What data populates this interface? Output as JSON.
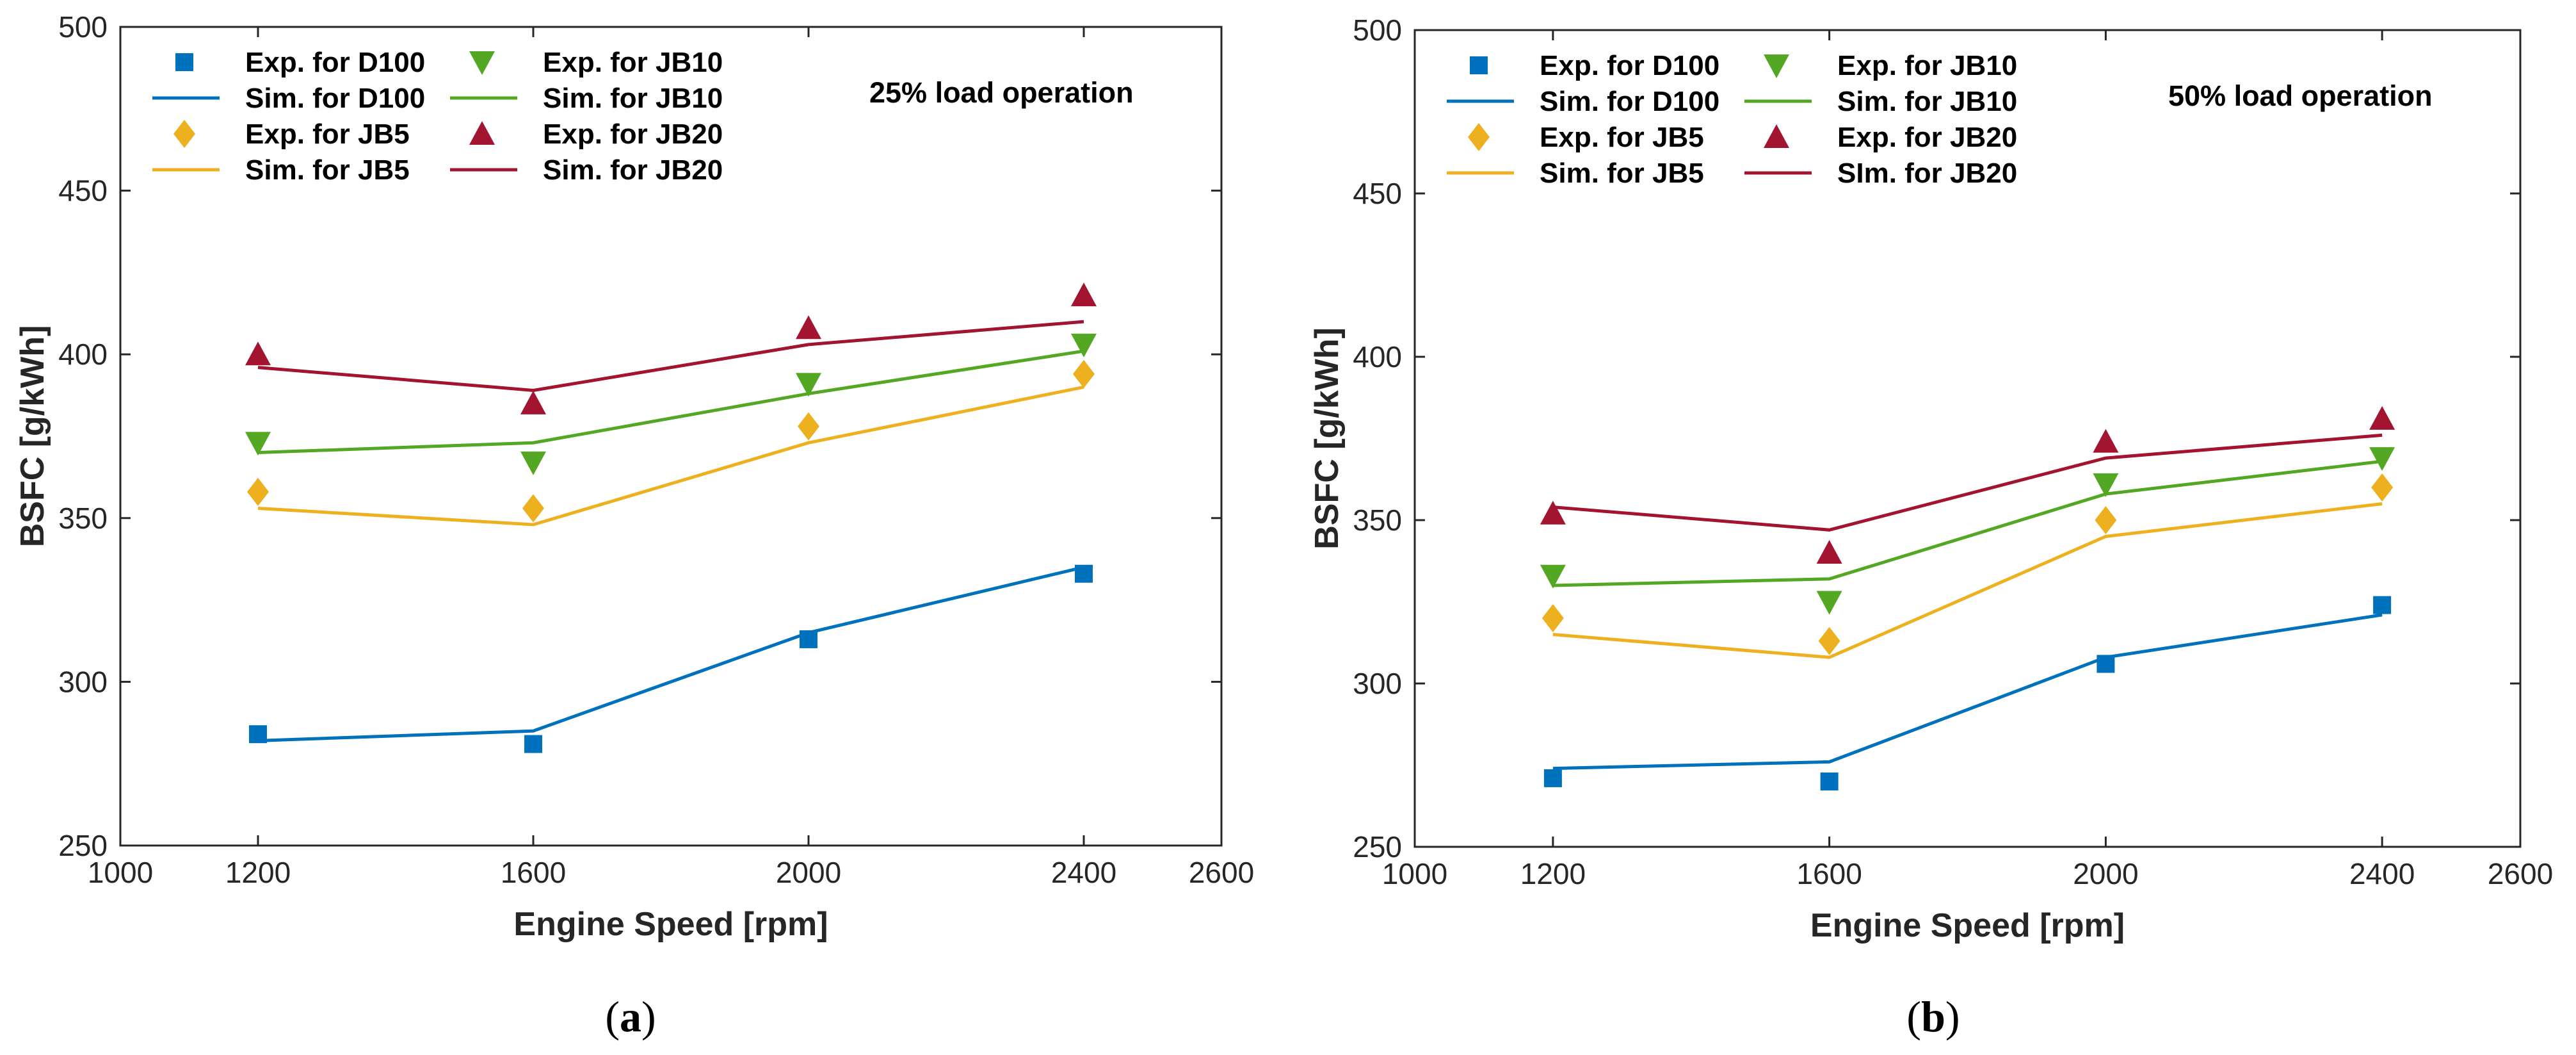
{
  "chart_data": [
    {
      "type": "line",
      "panel": "(a)",
      "caption_letter": "a",
      "annotation": "25% load operation",
      "xlabel": "Engine Speed [rpm]",
      "ylabel": "BSFC [g/kWh]",
      "xlim": [
        1000,
        2600
      ],
      "ylim": [
        250,
        500
      ],
      "xticks": [
        1000,
        1200,
        1600,
        2000,
        2400,
        2600
      ],
      "yticks": [
        250,
        300,
        350,
        400,
        450,
        500
      ],
      "x": [
        1200,
        1600,
        2000,
        2400
      ],
      "series": [
        {
          "name": "Exp. for D100",
          "kind": "marker",
          "marker": "square",
          "color": "#0072BD",
          "values": [
            284,
            281,
            313,
            333
          ]
        },
        {
          "name": "Sim. for D100",
          "kind": "line",
          "color": "#0072BD",
          "values": [
            282,
            285,
            315,
            335
          ]
        },
        {
          "name": "Exp. for JB5",
          "kind": "marker",
          "marker": "diamond",
          "color": "#EDB120",
          "values": [
            358,
            353,
            378,
            394
          ]
        },
        {
          "name": "Sim. for JB5",
          "kind": "line",
          "color": "#EDB120",
          "values": [
            353,
            348,
            373,
            390
          ]
        },
        {
          "name": "Exp. for JB10",
          "kind": "marker",
          "marker": "triangle-down",
          "color": "#53A722",
          "values": [
            373,
            367,
            391,
            403
          ]
        },
        {
          "name": "Sim. for JB10",
          "kind": "line",
          "color": "#53A722",
          "values": [
            370,
            373,
            388,
            401
          ]
        },
        {
          "name": "Exp. for JB20",
          "kind": "marker",
          "marker": "triangle-up",
          "color": "#A2142F",
          "values": [
            400,
            385,
            408,
            418
          ]
        },
        {
          "name": "Sim. for JB20",
          "kind": "line",
          "color": "#A2142F",
          "values": [
            396,
            389,
            403,
            410
          ]
        }
      ]
    },
    {
      "type": "line",
      "panel": "(b)",
      "caption_letter": "b",
      "annotation": "50% load operation",
      "xlabel": "Engine Speed [rpm]",
      "ylabel": "BSFC [g/kWh]",
      "xlim": [
        1000,
        2600
      ],
      "ylim": [
        250,
        500
      ],
      "xticks": [
        1000,
        1200,
        1600,
        2000,
        2400,
        2600
      ],
      "yticks": [
        250,
        300,
        350,
        400,
        450,
        500
      ],
      "x": [
        1200,
        1600,
        2000,
        2400
      ],
      "series": [
        {
          "name": "Exp. for D100",
          "kind": "marker",
          "marker": "square",
          "color": "#0072BD",
          "values": [
            271,
            270,
            306,
            324
          ]
        },
        {
          "name": "Sim. for D100",
          "kind": "line",
          "color": "#0072BD",
          "values": [
            274,
            276,
            308,
            321
          ]
        },
        {
          "name": "Exp. for JB5",
          "kind": "marker",
          "marker": "diamond",
          "color": "#EDB120",
          "values": [
            320,
            313,
            350,
            360
          ]
        },
        {
          "name": "Sim. for JB5",
          "kind": "line",
          "color": "#EDB120",
          "values": [
            315,
            308,
            345,
            355
          ]
        },
        {
          "name": "Exp. for JB10",
          "kind": "marker",
          "marker": "triangle-down",
          "color": "#53A722",
          "values": [
            333,
            325,
            361,
            369
          ]
        },
        {
          "name": "Sim. for JB10",
          "kind": "line",
          "color": "#53A722",
          "values": [
            330,
            332,
            358,
            368
          ]
        },
        {
          "name": "Exp. for JB20",
          "kind": "marker",
          "marker": "triangle-up",
          "color": "#A2142F",
          "values": [
            352,
            340,
            374,
            381
          ]
        },
        {
          "name": "SIm. for JB20",
          "kind": "line",
          "color": "#A2142F",
          "values": [
            354,
            347,
            369,
            376
          ]
        }
      ]
    }
  ]
}
